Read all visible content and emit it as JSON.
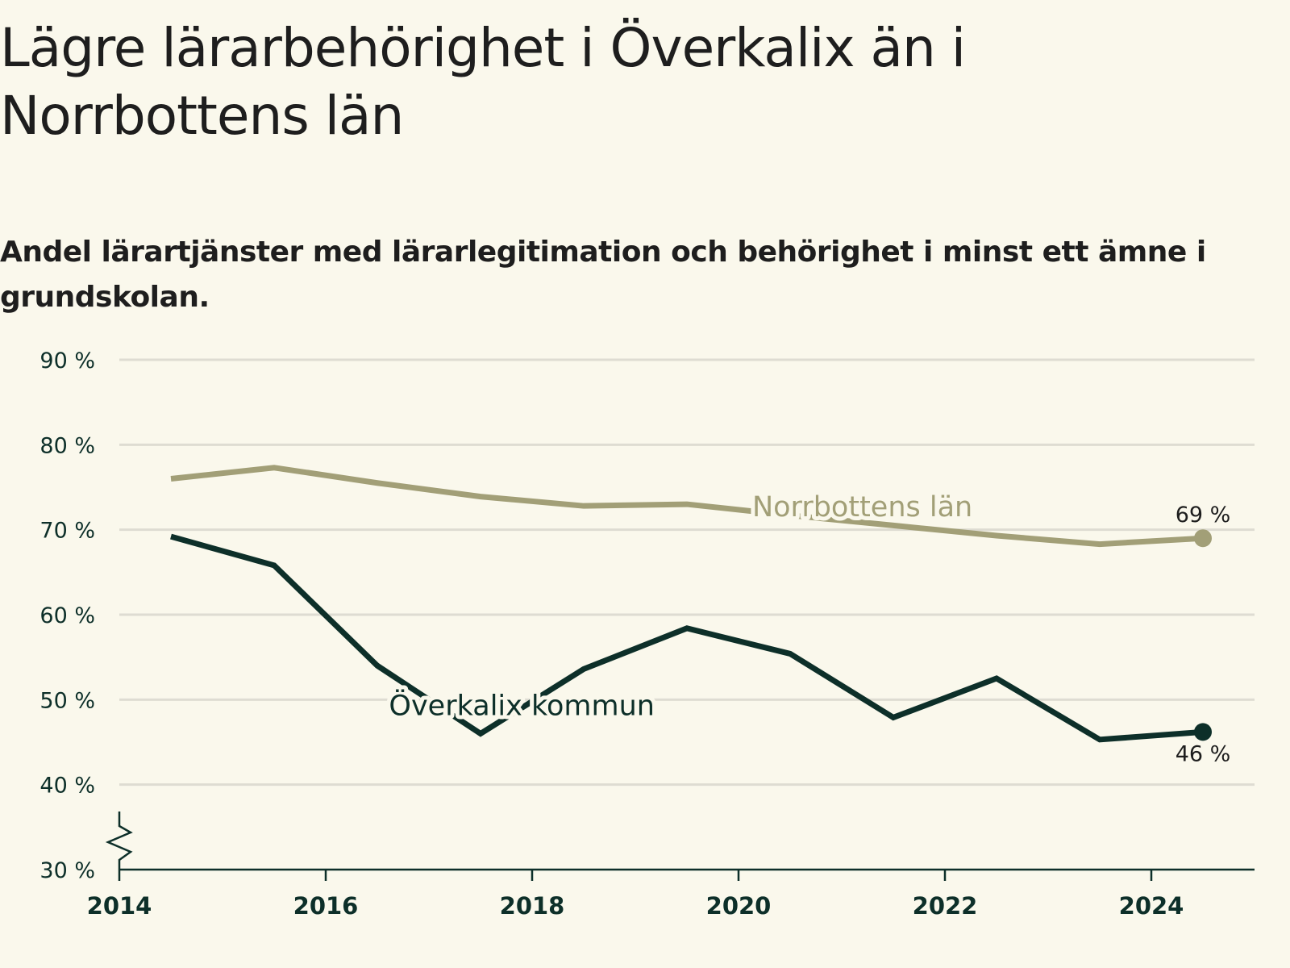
{
  "title": "Lägre lärarbehörighet i Överkalix än i Norrbottens län",
  "subtitle": "Andel lärartjänster med lärarlegitimation och behörighet i minst ett ämne i grundskolan.",
  "colors": {
    "background": "#faf8ec",
    "county": "#a29f77",
    "municipality": "#0d2f29",
    "grid": "#dedcd2",
    "axis": "#0d2f29"
  },
  "chart_data": {
    "type": "line",
    "title": "Lägre lärarbehörighet i Överkalix än i Norrbottens län",
    "subtitle": "Andel lärartjänster med lärarlegitimation och behörighet i minst ett ämne i grundskolan.",
    "xlabel": "",
    "ylabel": "",
    "x": [
      2014.5,
      2015.5,
      2016.5,
      2017.5,
      2018.5,
      2019.5,
      2020.5,
      2021.5,
      2022.5,
      2023.5,
      2024.5
    ],
    "xlim": [
      2014,
      2025
    ],
    "ylim": [
      30,
      90
    ],
    "y_axis_break": true,
    "grid": true,
    "x_ticks": [
      "2014",
      "2016",
      "2018",
      "2020",
      "2022",
      "2024"
    ],
    "x_tick_values": [
      2014,
      2016,
      2018,
      2020,
      2022,
      2024
    ],
    "y_ticks": [
      "30 %",
      "40 %",
      "50 %",
      "60 %",
      "70 %",
      "80 %",
      "90 %"
    ],
    "y_tick_values": [
      30,
      40,
      50,
      60,
      70,
      80,
      90
    ],
    "series": [
      {
        "name": "Norrbottens län",
        "values": [
          76,
          77.3,
          75.5,
          73.9,
          72.8,
          73,
          71.7,
          70.5,
          69.3,
          68.3,
          69
        ],
        "end_label": "69 %"
      },
      {
        "name": "Överkalix kommun",
        "values": [
          69.2,
          65.8,
          54,
          46,
          53.6,
          58.4,
          55.4,
          47.9,
          52.5,
          45.3,
          46.2
        ],
        "end_label": "46 %"
      }
    ]
  }
}
